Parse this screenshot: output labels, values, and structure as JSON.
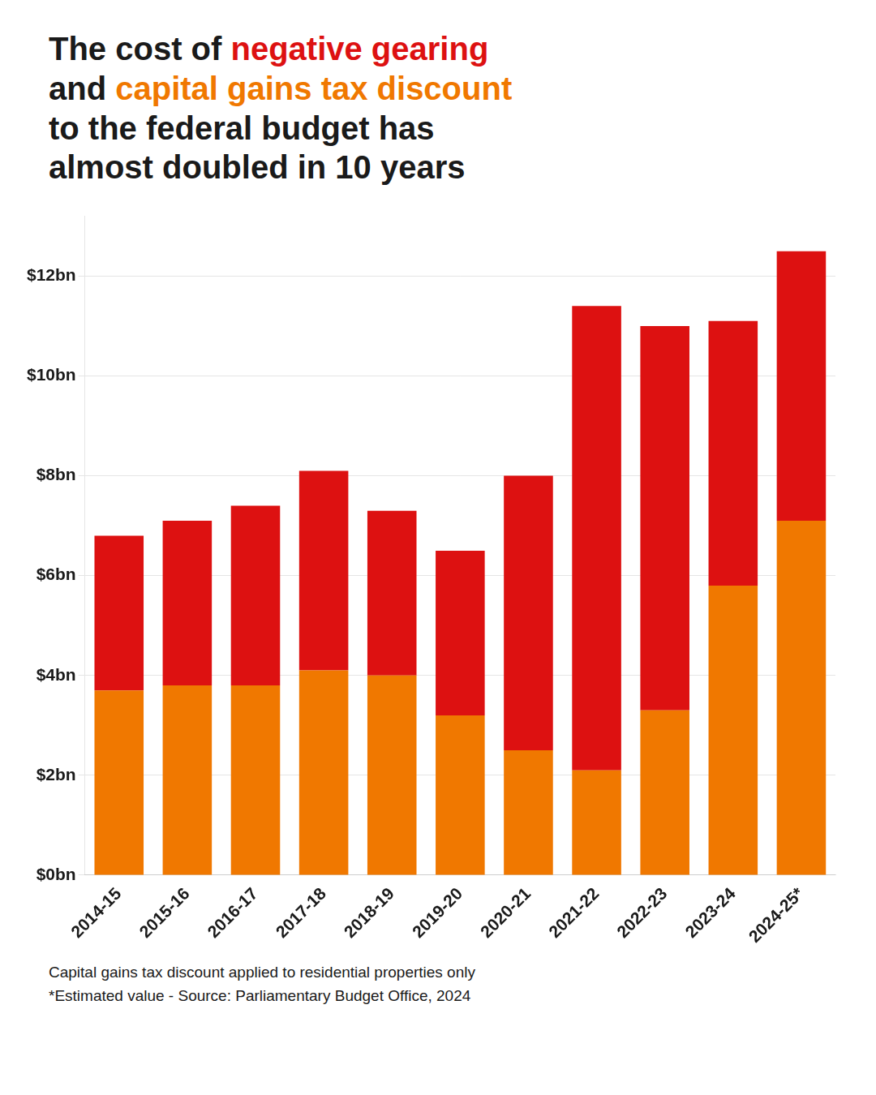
{
  "chart_data": {
    "type": "bar",
    "title": [
      "The cost of negative gearing",
      "and capital gains tax discount",
      "to the federal budget has",
      "almost doubled in 10 years"
    ],
    "categories": [
      "2014-15",
      "2015-16",
      "2016-17",
      "2017-18",
      "2018-19",
      "2019-20",
      "2020-21",
      "2021-22",
      "2022-23",
      "2023-24",
      "2024-25*"
    ],
    "series": [
      {
        "name": "capital gains tax discount",
        "color": "#f07800",
        "values": [
          3.7,
          3.8,
          3.8,
          4.1,
          4.0,
          3.2,
          2.5,
          2.1,
          3.3,
          5.8,
          7.1
        ]
      },
      {
        "name": "negative gearing",
        "color": "#dd1111",
        "values": [
          3.1,
          3.3,
          3.6,
          4.0,
          3.3,
          3.3,
          5.5,
          9.3,
          7.7,
          5.3,
          5.4
        ]
      }
    ],
    "stacked": true,
    "ylim": [
      0,
      13.2
    ],
    "yticks": [
      {
        "value": 0,
        "label": "$0bn"
      },
      {
        "value": 2,
        "label": "$2bn"
      },
      {
        "value": 4,
        "label": "$4bn"
      },
      {
        "value": 6,
        "label": "$6bn"
      },
      {
        "value": 8,
        "label": "$8bn"
      },
      {
        "value": 10,
        "label": "$10bn"
      },
      {
        "value": 12,
        "label": "$12bn"
      }
    ],
    "grid": true,
    "annotations": [
      "Capital gains tax discount applied to residential properties only",
      "*Estimated value - Source: Parliamentary Budget Office, 2024"
    ]
  }
}
